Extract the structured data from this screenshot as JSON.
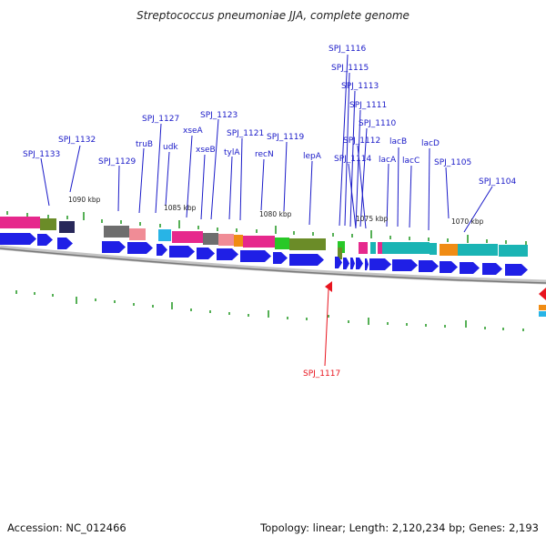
{
  "title": "Streptococcus pneumoniae JJA, complete genome",
  "footer": {
    "accession": "Accession: NC_012466",
    "summary": "Topology: linear; Length: 2,120,234 bp; Genes: 2,193"
  },
  "colors": {
    "gene_blue": "#1f1fe6",
    "label_blue": "#1a1ac8",
    "highlight_red": "#e8141e",
    "magenta": "#e6288c",
    "olive": "#6b8c28",
    "dark_navy": "#28285a",
    "teal": "#1ab4b4",
    "cyan": "#28b4e6",
    "orange": "#f08c14",
    "pink": "#f08c96",
    "gray": "#6e6e6e",
    "green": "#28c828",
    "tick_green": "#1e961e",
    "backbone": "#9a9a9a"
  },
  "scale_labels": [
    {
      "text": "1090 kbp"
    },
    {
      "text": "1085 kbp"
    },
    {
      "text": "1080 kbp"
    },
    {
      "text": "1075 kbp"
    },
    {
      "text": "1070 kbp"
    }
  ],
  "gene_labels": [
    {
      "text": "SPJ_1133",
      "highlight": false
    },
    {
      "text": "SPJ_1132",
      "highlight": false
    },
    {
      "text": "SPJ_1129",
      "highlight": false
    },
    {
      "text": "truB",
      "highlight": false
    },
    {
      "text": "SPJ_1127",
      "highlight": false
    },
    {
      "text": "udk",
      "highlight": false
    },
    {
      "text": "xseA",
      "highlight": false
    },
    {
      "text": "xseB",
      "highlight": false
    },
    {
      "text": "SPJ_1123",
      "highlight": false
    },
    {
      "text": "tylA",
      "highlight": false
    },
    {
      "text": "SPJ_1121",
      "highlight": false
    },
    {
      "text": "recN",
      "highlight": false
    },
    {
      "text": "SPJ_1119",
      "highlight": false
    },
    {
      "text": "lepA",
      "highlight": false
    },
    {
      "text": "SPJ_1116",
      "highlight": false
    },
    {
      "text": "SPJ_1115",
      "highlight": false
    },
    {
      "text": "SPJ_1113",
      "highlight": false
    },
    {
      "text": "SPJ_1111",
      "highlight": false
    },
    {
      "text": "SPJ_1110",
      "highlight": false
    },
    {
      "text": "SPJ_1112",
      "highlight": false
    },
    {
      "text": "SPJ_1114",
      "highlight": false
    },
    {
      "text": "lacA",
      "highlight": false
    },
    {
      "text": "lacB",
      "highlight": false
    },
    {
      "text": "lacC",
      "highlight": false
    },
    {
      "text": "lacD",
      "highlight": false
    },
    {
      "text": "SPJ_1105",
      "highlight": false
    },
    {
      "text": "SPJ_1104",
      "highlight": false
    },
    {
      "text": "SPJ_1117",
      "highlight": true
    }
  ]
}
